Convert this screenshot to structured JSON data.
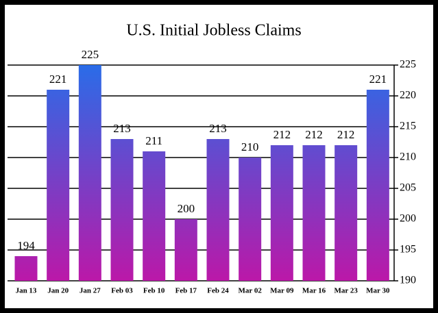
{
  "chart_data": {
    "type": "bar",
    "title": "U.S. Initial Jobless Claims",
    "categories": [
      "Jan 13",
      "Jan 20",
      "Jan 27",
      "Feb 03",
      "Feb 10",
      "Feb 17",
      "Feb 24",
      "Mar 02",
      "Mar 09",
      "Mar 16",
      "Mar 23",
      "Mar 30"
    ],
    "values": [
      194,
      221,
      225,
      213,
      211,
      200,
      213,
      210,
      212,
      212,
      212,
      221
    ],
    "gradient_colors": [
      "#2a6ce8",
      "#bb18a8"
    ],
    "ylim": [
      190,
      225
    ],
    "yticks": [
      190,
      195,
      200,
      205,
      210,
      215,
      220,
      225
    ],
    "y_axis_side": "right",
    "grid": true
  }
}
